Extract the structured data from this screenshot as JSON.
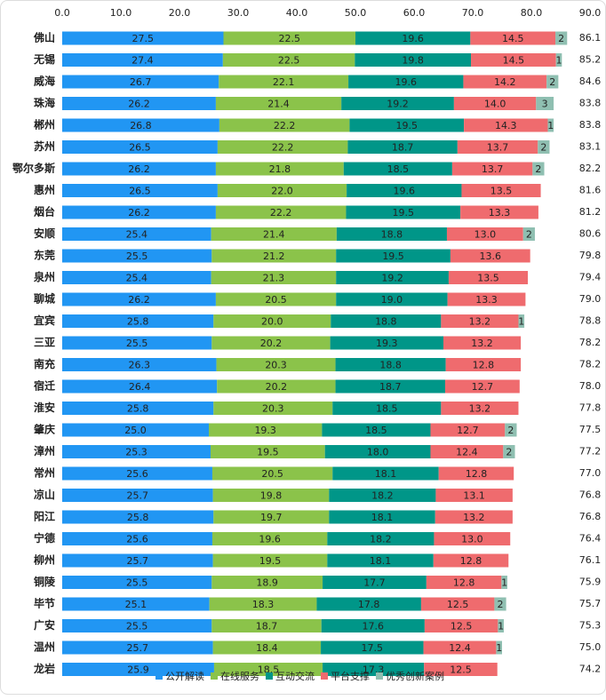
{
  "chart_data": {
    "type": "stacked-bar-horizontal",
    "categories": [
      "佛山",
      "无锡",
      "威海",
      "珠海",
      "郴州",
      "苏州",
      "鄂尔多斯",
      "惠州",
      "烟台",
      "安顺",
      "东莞",
      "泉州",
      "聊城",
      "宜宾",
      "三亚",
      "南充",
      "宿迁",
      "淮安",
      "肇庆",
      "漳州",
      "常州",
      "凉山",
      "阳江",
      "宁德",
      "柳州",
      "铜陵",
      "毕节",
      "广安",
      "温州",
      "龙岩"
    ],
    "series": [
      {
        "name": "公开解读",
        "color": "#2196f3",
        "values": [
          27.5,
          27.4,
          26.7,
          26.2,
          26.8,
          26.5,
          26.2,
          26.5,
          26.2,
          25.4,
          25.5,
          25.4,
          26.2,
          25.8,
          25.5,
          26.3,
          26.4,
          25.8,
          25.0,
          25.3,
          25.6,
          25.7,
          25.8,
          25.6,
          25.7,
          25.5,
          25.1,
          25.5,
          25.7,
          25.9
        ],
        "value_labels": [
          "27.5",
          "27.4",
          "26.7",
          "26.2",
          "26.8",
          "26.5",
          "26.2",
          "26.5",
          "26.2",
          "25.4",
          "25.5",
          "25.4",
          "26.2",
          "25.8",
          "25.5",
          "26.3",
          "26.4",
          "25.8",
          "25.0",
          "25.3",
          "25.6",
          "25.7",
          "25.8",
          "25.6",
          "25.7",
          "25.5",
          "25.1",
          "25.5",
          "25.7",
          "25.9"
        ]
      },
      {
        "name": "在线服务",
        "color": "#8bc34a",
        "values": [
          22.5,
          22.5,
          22.1,
          21.4,
          22.2,
          22.2,
          21.8,
          22.0,
          22.2,
          21.4,
          21.2,
          21.3,
          20.5,
          20.0,
          20.2,
          20.3,
          20.2,
          20.3,
          19.3,
          19.5,
          20.5,
          19.8,
          19.7,
          19.6,
          19.5,
          18.9,
          18.3,
          18.7,
          18.4,
          18.5
        ],
        "value_labels": [
          "22.5",
          "22.5",
          "22.1",
          "21.4",
          "22.2",
          "22.2",
          "21.8",
          "22.0",
          "22.2",
          "21.4",
          "21.2",
          "21.3",
          "20.5",
          "20.0",
          "20.2",
          "20.3",
          "20.2",
          "20.3",
          "19.3",
          "19.5",
          "20.5",
          "19.8",
          "19.7",
          "19.6",
          "19.5",
          "18.9",
          "18.3",
          "18.7",
          "18.4",
          "18.5"
        ]
      },
      {
        "name": "互动交流",
        "color": "#009688",
        "values": [
          19.6,
          19.8,
          19.6,
          19.2,
          19.5,
          18.7,
          18.5,
          19.6,
          19.5,
          18.8,
          19.5,
          19.2,
          19.0,
          18.8,
          19.3,
          18.8,
          18.7,
          18.5,
          18.5,
          18.0,
          18.1,
          18.2,
          18.1,
          18.2,
          18.1,
          17.7,
          17.8,
          17.6,
          17.5,
          17.3
        ],
        "value_labels": [
          "19.6",
          "19.8",
          "19.6",
          "19.2",
          "19.5",
          "18.7",
          "18.5",
          "19.6",
          "19.5",
          "18.8",
          "19.5",
          "19.2",
          "19.0",
          "18.8",
          "19.3",
          "18.8",
          "18.7",
          "18.5",
          "18.5",
          "18.0",
          "18.1",
          "18.2",
          "18.1",
          "18.2",
          "18.1",
          "17.7",
          "17.8",
          "17.6",
          "17.5",
          "17.3"
        ]
      },
      {
        "name": "平台支撑",
        "color": "#ef6b6e",
        "values": [
          14.5,
          14.5,
          14.2,
          14.0,
          14.3,
          13.7,
          13.7,
          13.5,
          13.3,
          13.0,
          13.6,
          13.5,
          13.3,
          13.2,
          13.2,
          12.8,
          12.7,
          13.2,
          12.7,
          12.4,
          12.8,
          13.1,
          13.2,
          13.0,
          12.8,
          12.8,
          12.5,
          12.5,
          12.4,
          12.5
        ],
        "value_labels": [
          "14.5",
          "14.5",
          "14.2",
          "14.0",
          "14.3",
          "13.7",
          "13.7",
          "13.5",
          "13.3",
          "13.0",
          "13.6",
          "13.5",
          "13.3",
          "13.2",
          "13.2",
          "12.8",
          "12.7",
          "13.2",
          "12.7",
          "12.4",
          "12.8",
          "13.1",
          "13.2",
          "13.0",
          "12.8",
          "12.8",
          "12.5",
          "12.5",
          "12.4",
          "12.5"
        ]
      },
      {
        "name": "优秀创新案例",
        "color": "#8fbfb1",
        "values": [
          2,
          1,
          2,
          3,
          1,
          2,
          2,
          null,
          null,
          2,
          null,
          null,
          null,
          1,
          null,
          null,
          null,
          null,
          2,
          2,
          null,
          null,
          null,
          null,
          null,
          1,
          2,
          1,
          1,
          null
        ]
      }
    ],
    "total_labels": [
      "86.1",
      "85.2",
      "84.6",
      "83.8",
      "83.8",
      "83.1",
      "82.2",
      "81.6",
      "81.2",
      "80.6",
      "79.8",
      "79.4",
      "79.0",
      "78.8",
      "78.2",
      "78.2",
      "78.0",
      "77.8",
      "77.5",
      "77.2",
      "77.0",
      "76.8",
      "76.8",
      "76.4",
      "76.1",
      "75.9",
      "75.7",
      "75.3",
      "75.0",
      "74.2"
    ],
    "xlim": [
      0,
      90
    ],
    "xticks": [
      {
        "value": 0,
        "label": "0.0"
      },
      {
        "value": 10,
        "label": "10.0"
      },
      {
        "value": 20,
        "label": "20.0"
      },
      {
        "value": 30,
        "label": "30.0"
      },
      {
        "value": 40,
        "label": "40.0"
      },
      {
        "value": 50,
        "label": "50.0"
      },
      {
        "value": 60,
        "label": "60.0"
      },
      {
        "value": 70,
        "label": "70.0"
      },
      {
        "value": 80,
        "label": "80.0"
      },
      {
        "value": 90,
        "label": "90.0"
      }
    ]
  }
}
